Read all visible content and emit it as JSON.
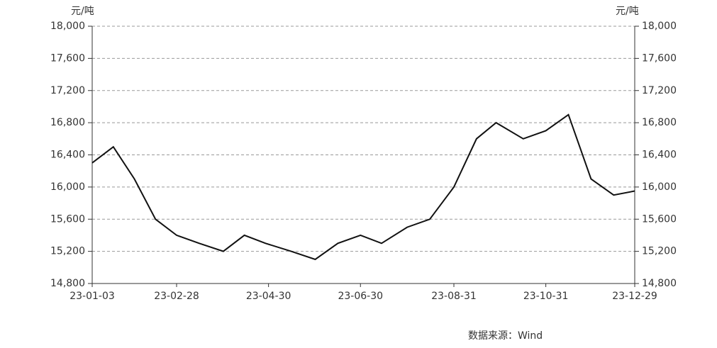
{
  "chart_data": {
    "type": "line",
    "y_unit": "元/吨",
    "y2_unit": "元/吨",
    "source": "数据来源：Wind",
    "x": [
      "23-01-03",
      "23-01-17",
      "23-01-31",
      "23-02-14",
      "23-02-28",
      "23-03-15",
      "23-03-31",
      "23-04-14",
      "23-04-28",
      "23-05-15",
      "23-05-31",
      "23-06-15",
      "23-06-30",
      "23-07-14",
      "23-07-31",
      "23-08-15",
      "23-08-31",
      "23-09-15",
      "23-09-28",
      "23-10-16",
      "23-10-31",
      "23-11-15",
      "23-11-30",
      "23-12-15",
      "23-12-29"
    ],
    "series": [
      {
        "color": "#111111",
        "values": [
          16300,
          16500,
          16100,
          15600,
          15400,
          15300,
          15200,
          15400,
          15300,
          15200,
          15100,
          15300,
          15400,
          15300,
          15500,
          15600,
          16000,
          16600,
          16800,
          16600,
          16700,
          16900,
          16100,
          15900,
          15950
        ]
      }
    ],
    "xlim": [
      "23-01-03",
      "23-12-29"
    ],
    "xticks": [
      "23-01-03",
      "23-02-28",
      "23-04-30",
      "23-06-30",
      "23-08-31",
      "23-10-31",
      "23-12-29"
    ],
    "ylim": [
      14800,
      18000
    ],
    "yticks": [
      {
        "value": 14800,
        "label": "14,800"
      },
      {
        "value": 15200,
        "label": "15,200"
      },
      {
        "value": 15600,
        "label": "15,600"
      },
      {
        "value": 16000,
        "label": "16,000"
      },
      {
        "value": 16400,
        "label": "16,400"
      },
      {
        "value": 16800,
        "label": "16,800"
      },
      {
        "value": 17200,
        "label": "17,200"
      },
      {
        "value": 17600,
        "label": "17,600"
      },
      {
        "value": 18000,
        "label": "18,000"
      }
    ],
    "y2lim": [
      14800,
      18000
    ],
    "y2ticks": [
      {
        "value": 14800,
        "label": "14,800"
      },
      {
        "value": 15200,
        "label": "15,200"
      },
      {
        "value": 15600,
        "label": "15,600"
      },
      {
        "value": 16000,
        "label": "16,000"
      },
      {
        "value": 16400,
        "label": "16,400"
      },
      {
        "value": 16800,
        "label": "16,800"
      },
      {
        "value": 17200,
        "label": "17,200"
      },
      {
        "value": 17600,
        "label": "17,600"
      },
      {
        "value": 18000,
        "label": "18,000"
      }
    ],
    "grid": true
  }
}
